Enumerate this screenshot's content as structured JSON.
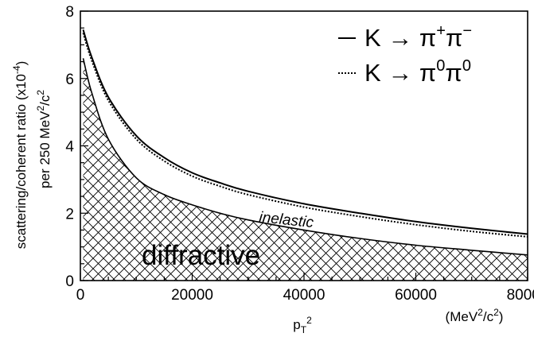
{
  "chart_data": {
    "type": "line",
    "title": "",
    "xlabel": "p_T^2",
    "xunit": "(MeV^2/c^2)",
    "ylabel_line1": "scattering/coherent ratio (x10^-4)",
    "ylabel_line2": "per 250 MeV^2/c^2",
    "xlim": [
      0,
      80000
    ],
    "ylim": [
      0,
      8
    ],
    "xticks": [
      {
        "value": 0,
        "label": "0"
      },
      {
        "value": 20000,
        "label": "20000"
      },
      {
        "value": 40000,
        "label": "40000"
      },
      {
        "value": 60000,
        "label": "60000"
      },
      {
        "value": 80000,
        "label": "80000"
      }
    ],
    "yticks": [
      {
        "value": 0,
        "label": "0"
      },
      {
        "value": 2,
        "label": "2"
      },
      {
        "value": 4,
        "label": "4"
      },
      {
        "value": 6,
        "label": "6"
      },
      {
        "value": 8,
        "label": "8"
      }
    ],
    "legend_position": "top-right",
    "series": [
      {
        "name": "K → π+π−",
        "style": "solid",
        "x": [
          500,
          2000,
          5000,
          10000,
          15000,
          20000,
          25000,
          30000,
          40000,
          50000,
          60000,
          70000,
          80000
        ],
        "y": [
          7.45,
          6.65,
          5.45,
          4.3,
          3.65,
          3.2,
          2.9,
          2.65,
          2.28,
          2.0,
          1.75,
          1.55,
          1.38
        ]
      },
      {
        "name": "K → π0π0",
        "style": "dotted",
        "x": [
          500,
          2000,
          5000,
          10000,
          15000,
          20000,
          25000,
          30000,
          40000,
          50000,
          60000,
          70000,
          80000
        ],
        "y": [
          7.35,
          6.55,
          5.35,
          4.2,
          3.55,
          3.1,
          2.8,
          2.55,
          2.18,
          1.9,
          1.66,
          1.46,
          1.3
        ]
      },
      {
        "name": "diffractive",
        "style": "solid-hatched",
        "x": [
          500,
          2000,
          5000,
          10000,
          15000,
          20000,
          25000,
          30000,
          40000,
          50000,
          60000,
          70000,
          80000
        ],
        "y": [
          6.6,
          5.6,
          4.2,
          3.05,
          2.55,
          2.25,
          2.0,
          1.8,
          1.5,
          1.25,
          1.05,
          0.9,
          0.76
        ]
      }
    ],
    "legend": [
      {
        "glyph": "—",
        "prefix": "K → π",
        "sup1": "+",
        "mid": "π",
        "sup2": "−"
      },
      {
        "glyph": "┅",
        "prefix": "K → π",
        "sup1": "0",
        "mid": "π",
        "sup2": "0"
      }
    ],
    "annotations": [
      {
        "text": "inelastic"
      },
      {
        "text": "diffractive"
      }
    ],
    "colors": {
      "line": "#000000",
      "background": "#ffffff"
    }
  }
}
